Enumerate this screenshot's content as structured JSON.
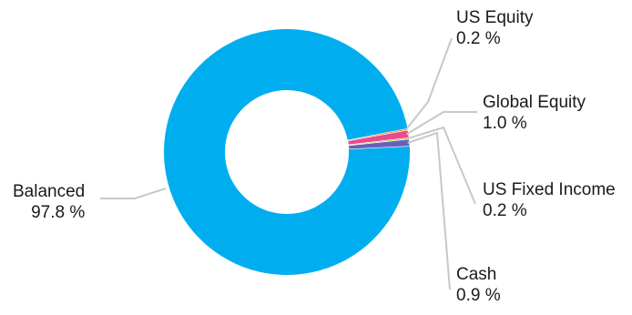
{
  "chart_data": {
    "type": "pie",
    "donut": true,
    "slices": [
      {
        "name": "Balanced",
        "value": 97.8,
        "label": "97.8 %",
        "color": "#00AEEF"
      },
      {
        "name": "US Equity",
        "value": 0.2,
        "label": "0.2 %",
        "color": "#F47A20"
      },
      {
        "name": "Global Equity",
        "value": 1.0,
        "label": "1.0 %",
        "color": "#E84C8B"
      },
      {
        "name": "US Fixed Income",
        "value": 0.2,
        "label": "0.2 %",
        "color": "#8DC63F"
      },
      {
        "name": "Cash",
        "value": 0.9,
        "label": "0.9 %",
        "color": "#6A5FB5"
      }
    ],
    "leader_color": "#c8c8c8"
  }
}
